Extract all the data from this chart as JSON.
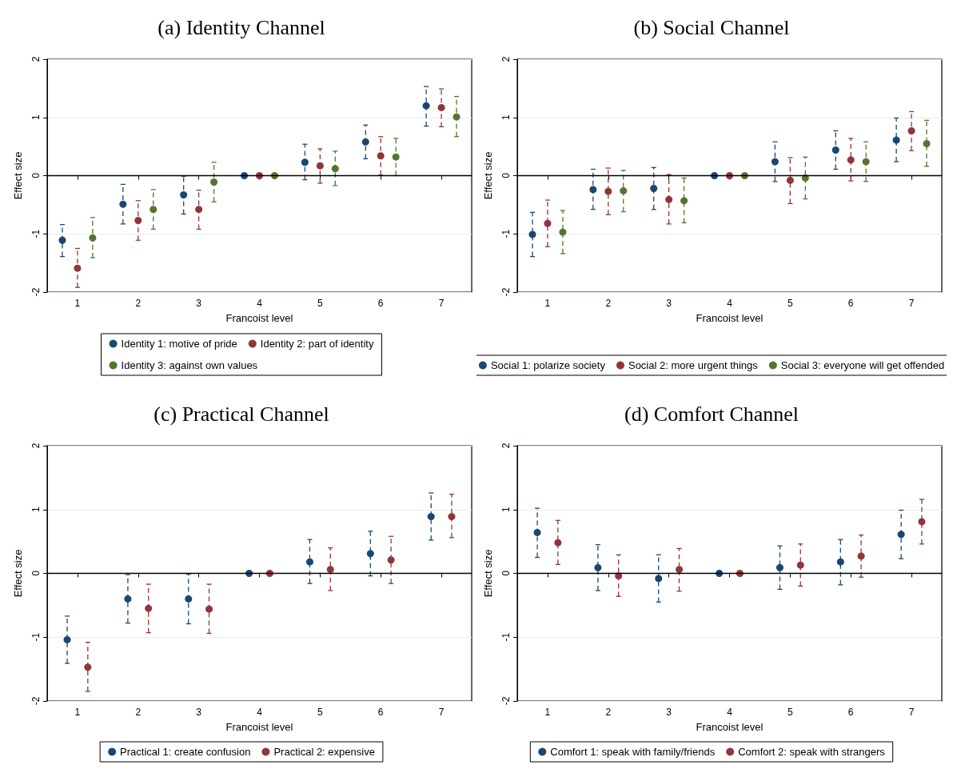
{
  "chart_data": [
    {
      "type": "scatter",
      "title": "(a) Identity Channel",
      "xlabel": "Francoist level",
      "ylabel": "Effect size",
      "xlim": [
        0.5,
        7.5
      ],
      "xticks": [
        1,
        2,
        3,
        4,
        5,
        6,
        7
      ],
      "ylim": [
        -2,
        2
      ],
      "yticks": [
        -2,
        -1,
        0,
        1,
        2
      ],
      "grid": "y",
      "legend": "bottom",
      "marker": "circle",
      "ref_lines": [
        {
          "axis": "y",
          "value": 0,
          "color": "#000000"
        }
      ],
      "series": [
        {
          "name": "Identity 1: motive of pride",
          "color": "#1a476f",
          "x": [
            0.75,
            1.75,
            2.75,
            3.75,
            4.75,
            5.75,
            6.75
          ],
          "values": [
            -1.11,
            -0.49,
            -0.33,
            0,
            0.23,
            0.58,
            1.2
          ],
          "errors": [
            [
              -1.39,
              -0.84
            ],
            [
              -0.83,
              -0.15
            ],
            [
              -0.66,
              -0.01
            ],
            null,
            [
              -0.07,
              0.54
            ],
            [
              0.29,
              0.87
            ],
            [
              0.85,
              1.53
            ]
          ]
        },
        {
          "name": "Identity 2: part of identity",
          "color": "#90353b",
          "x": [
            1,
            2,
            3,
            4,
            5,
            6,
            7
          ],
          "values": [
            -1.59,
            -0.77,
            -0.58,
            0,
            0.17,
            0.34,
            1.17
          ],
          "errors": [
            [
              -1.92,
              -1.25
            ],
            [
              -1.11,
              -0.43
            ],
            [
              -0.92,
              -0.25
            ],
            null,
            [
              -0.13,
              0.46
            ],
            [
              0.01,
              0.67
            ],
            [
              0.84,
              1.49
            ]
          ]
        },
        {
          "name": "Identity 3: against own values",
          "color": "#55752f",
          "x": [
            1.25,
            2.25,
            3.25,
            4.25,
            5.25,
            6.25,
            7.25
          ],
          "values": [
            -1.07,
            -0.58,
            -0.11,
            0,
            0.12,
            0.32,
            1.01
          ],
          "errors": [
            [
              -1.41,
              -0.72
            ],
            [
              -0.92,
              -0.24
            ],
            [
              -0.45,
              0.23
            ],
            null,
            [
              -0.17,
              0.42
            ],
            [
              0,
              0.64
            ],
            [
              0.67,
              1.36
            ]
          ]
        }
      ]
    },
    {
      "type": "scatter",
      "title": "(b) Social Channel",
      "xlabel": "Francoist level",
      "ylabel": "Effect size",
      "xlim": [
        0.5,
        7.5
      ],
      "xticks": [
        1,
        2,
        3,
        4,
        5,
        6,
        7
      ],
      "ylim": [
        -2,
        2
      ],
      "yticks": [
        -2,
        -1,
        0,
        1,
        2
      ],
      "grid": "y",
      "legend": "bottom",
      "marker": "circle",
      "ref_lines": [
        {
          "axis": "y",
          "value": 0,
          "color": "#000000"
        }
      ],
      "series": [
        {
          "name": "Social 1: polarize society",
          "color": "#1a476f",
          "x": [
            0.75,
            1.75,
            2.75,
            3.75,
            4.75,
            5.75,
            6.75
          ],
          "values": [
            -1.01,
            -0.24,
            -0.22,
            0,
            0.24,
            0.44,
            0.61
          ],
          "errors": [
            [
              -1.39,
              -0.63
            ],
            [
              -0.58,
              0.11
            ],
            [
              -0.58,
              0.14
            ],
            null,
            [
              -0.1,
              0.58
            ],
            [
              0.11,
              0.77
            ],
            [
              0.24,
              0.99
            ]
          ]
        },
        {
          "name": "Social 2: more urgent things",
          "color": "#90353b",
          "x": [
            1,
            2,
            3,
            4,
            5,
            6,
            7
          ],
          "values": [
            -0.82,
            -0.27,
            -0.41,
            0,
            -0.08,
            0.27,
            0.77
          ],
          "errors": [
            [
              -1.22,
              -0.42
            ],
            [
              -0.67,
              0.13
            ],
            [
              -0.83,
              0.02
            ],
            null,
            [
              -0.48,
              0.31
            ],
            [
              -0.09,
              0.64
            ],
            [
              0.43,
              1.1
            ]
          ]
        },
        {
          "name": "Social 3: everyone will get offended",
          "color": "#55752f",
          "x": [
            1.25,
            2.25,
            3.25,
            4.25,
            5.25,
            6.25,
            7.25
          ],
          "values": [
            -0.97,
            -0.26,
            -0.43,
            0,
            -0.04,
            0.24,
            0.55
          ],
          "errors": [
            [
              -1.34,
              -0.6
            ],
            [
              -0.62,
              0.09
            ],
            [
              -0.81,
              -0.04
            ],
            null,
            [
              -0.4,
              0.32
            ],
            [
              -0.1,
              0.58
            ],
            [
              0.16,
              0.95
            ]
          ]
        }
      ]
    },
    {
      "type": "scatter",
      "title": "(c) Practical Channel",
      "xlabel": "Francoist level",
      "ylabel": "Effect size",
      "xlim": [
        0.5,
        7.5
      ],
      "xticks": [
        1,
        2,
        3,
        4,
        5,
        6,
        7
      ],
      "ylim": [
        -2,
        2
      ],
      "yticks": [
        -2,
        -1,
        0,
        1,
        2
      ],
      "grid": "y",
      "legend": "bottom",
      "marker": "circle",
      "ref_lines": [
        {
          "axis": "y",
          "value": 0,
          "color": "#000000"
        }
      ],
      "series": [
        {
          "name": "Practical 1: create confusion",
          "color": "#1a476f",
          "x": [
            0.83,
            1.83,
            2.83,
            3.83,
            4.83,
            5.83,
            6.83
          ],
          "values": [
            -1.04,
            -0.4,
            -0.4,
            0,
            0.18,
            0.31,
            0.89
          ],
          "errors": [
            [
              -1.41,
              -0.67
            ],
            [
              -0.78,
              -0.02
            ],
            [
              -0.79,
              -0.01
            ],
            null,
            [
              -0.16,
              0.53
            ],
            [
              -0.04,
              0.66
            ],
            [
              0.52,
              1.26
            ]
          ]
        },
        {
          "name": "Practical 2: expensive",
          "color": "#90353b",
          "x": [
            1.17,
            2.17,
            3.17,
            4.17,
            5.17,
            6.17,
            7.17
          ],
          "values": [
            -1.47,
            -0.55,
            -0.56,
            0,
            0.06,
            0.21,
            0.89
          ],
          "errors": [
            [
              -1.85,
              -1.08
            ],
            [
              -0.93,
              -0.17
            ],
            [
              -0.94,
              -0.17
            ],
            null,
            [
              -0.27,
              0.4
            ],
            [
              -0.16,
              0.58
            ],
            [
              0.56,
              1.24
            ]
          ]
        }
      ]
    },
    {
      "type": "scatter",
      "title": "(d) Comfort Channel",
      "xlabel": "Francoist level",
      "ylabel": "Effect size",
      "xlim": [
        0.5,
        7.5
      ],
      "xticks": [
        1,
        2,
        3,
        4,
        5,
        6,
        7
      ],
      "ylim": [
        -2,
        2
      ],
      "yticks": [
        -2,
        -1,
        0,
        1,
        2
      ],
      "grid": "y",
      "legend": "bottom",
      "marker": "circle",
      "ref_lines": [
        {
          "axis": "y",
          "value": 0,
          "color": "#000000"
        }
      ],
      "series": [
        {
          "name": "Comfort 1: speak with family/friends",
          "color": "#1a476f",
          "x": [
            0.83,
            1.83,
            2.83,
            3.83,
            4.83,
            5.83,
            6.83
          ],
          "values": [
            0.64,
            0.09,
            -0.08,
            0,
            0.09,
            0.18,
            0.61
          ],
          "errors": [
            [
              0.25,
              1.02
            ],
            [
              -0.27,
              0.45
            ],
            [
              -0.45,
              0.29
            ],
            null,
            [
              -0.25,
              0.43
            ],
            [
              -0.18,
              0.53
            ],
            [
              0.23,
              0.99
            ]
          ]
        },
        {
          "name": "Comfort 2: speak with strangers",
          "color": "#90353b",
          "x": [
            1.17,
            2.17,
            3.17,
            4.17,
            5.17,
            6.17,
            7.17
          ],
          "values": [
            0.48,
            -0.04,
            0.06,
            0,
            0.13,
            0.27,
            0.81
          ],
          "errors": [
            [
              0.14,
              0.83
            ],
            [
              -0.36,
              0.29
            ],
            [
              -0.28,
              0.39
            ],
            null,
            [
              -0.2,
              0.46
            ],
            [
              -0.06,
              0.6
            ],
            [
              0.46,
              1.16
            ]
          ]
        }
      ]
    }
  ]
}
